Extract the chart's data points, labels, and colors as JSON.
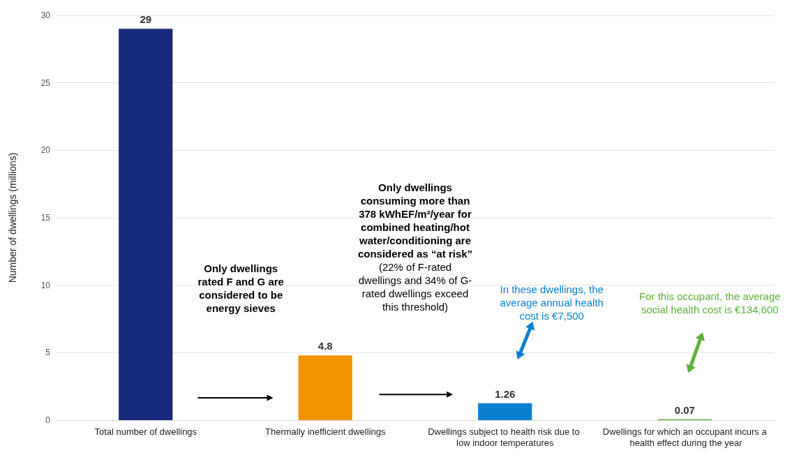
{
  "chart_data": {
    "type": "bar",
    "ylabel": "Number of dwellings (millions)",
    "categories": [
      "Total number of dwellings",
      "Thermally inefficient dwellings",
      "Dwellings subject to health risk due to low indoor temperatures",
      "Dwellings for which an occupant incurs a health effect during the year"
    ],
    "values": [
      29,
      4.8,
      1.26,
      0.07
    ],
    "colors": [
      "#172a7e",
      "#f29400",
      "#0a7fce",
      "#5db13a"
    ],
    "ylim": [
      0,
      30
    ],
    "yticks": [
      0,
      5,
      10,
      15,
      20,
      25,
      30
    ],
    "grid": "y",
    "data_labels": true,
    "annotations": [
      "Only dwellings rated F and G are considered to be energy sieves",
      "Only dwellings consuming more than 378 kWhEF/m²/year for combined heating/hot water/conditioning are considered as “at risk”",
      "(22% of F-rated dwellings and 34% of G-rated dwellings exceed this threshold)",
      "In these dwellings, the average annual health cost is €7,500",
      "For this occupant, the average social health cost is €134,600"
    ]
  }
}
